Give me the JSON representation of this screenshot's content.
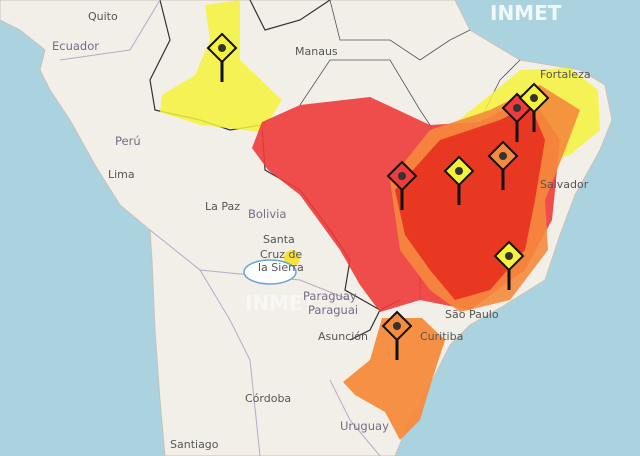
{
  "watermark": "INMET",
  "overlay_watermark": "INMET",
  "labels": {
    "quito": "Quito",
    "ecuador": "Ecuador",
    "manaus": "Manaus",
    "peru": "Perú",
    "lima": "Lima",
    "la_paz": "La Paz",
    "bolivia": "Bolivia",
    "santa_cruz_1": "Santa",
    "santa_cruz_2": "Cruz de",
    "santa_cruz_3": "la Sierra",
    "paraguay_1": "Paraguay",
    "paraguay_2": "Paraguai",
    "asuncion": "Asunción",
    "sao_paulo": "São Paulo",
    "curitiba": "Curitiba",
    "cordoba": "Córdoba",
    "santiago": "Santiago",
    "uruguay": "Uruguay",
    "fortaleza": "Fortaleza",
    "salvador": "Salvador"
  },
  "colors": {
    "ocean": "#aad3df",
    "land": "#f2efe9",
    "yellow_alert": "#f5f23a",
    "orange_alert": "#f58a3c",
    "red_alert": "#ee3b3b"
  },
  "alerts": [
    {
      "level": "yellow"
    },
    {
      "level": "red"
    },
    {
      "level": "yellow"
    },
    {
      "level": "orange"
    },
    {
      "level": "red"
    },
    {
      "level": "yellow"
    },
    {
      "level": "yellow"
    },
    {
      "level": "orange"
    }
  ],
  "weather_icon": "sun-behind-cloud-icon"
}
